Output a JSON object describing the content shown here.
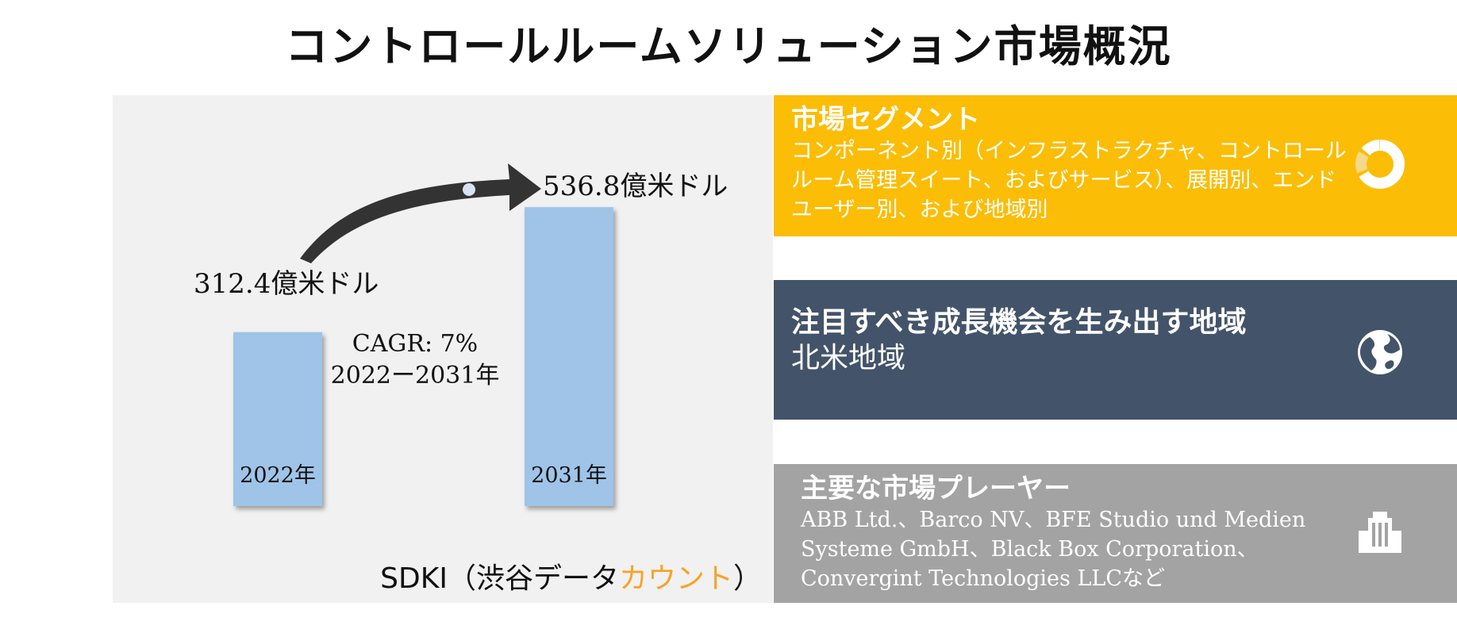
{
  "title": "コントロールルームソリューション市場概況",
  "chart_data": {
    "type": "bar",
    "categories": [
      "2022年",
      "2031年"
    ],
    "values": [
      312.4,
      536.8
    ],
    "value_labels": [
      "312.4億米ドル",
      "536.8億米ドル"
    ],
    "unit": "億米ドル",
    "annotation_cagr": "CAGR: 7%",
    "annotation_period": "2022ー2031年",
    "bar_color": "#9fc4e8",
    "grid": false
  },
  "source": {
    "prefix": "SDKI（渋谷データ",
    "accent": "カウント",
    "suffix": "）",
    "accent_color": "#f5a524"
  },
  "cards": {
    "segment": {
      "title": "市場セグメント",
      "text": "コンポーネント別（インフラストラクチャ、コントロールルーム管理スイート、およびサービス）、展開別、エンドユーザー別、および地域別",
      "icon": "donut-chart-icon",
      "color": "#fbbd05"
    },
    "region": {
      "title": "注目すべき成長機会を生み出す地域",
      "text": "北米地域",
      "icon": "globe-icon",
      "color": "#435369"
    },
    "players": {
      "title": "主要な市場プレーヤー",
      "text": "ABB Ltd.、Barco NV、BFE Studio und Medien Systeme GmbH、Black Box Corporation、Convergint Technologies LLCなど",
      "icon": "building-icon",
      "color": "#a3a3a3"
    }
  }
}
